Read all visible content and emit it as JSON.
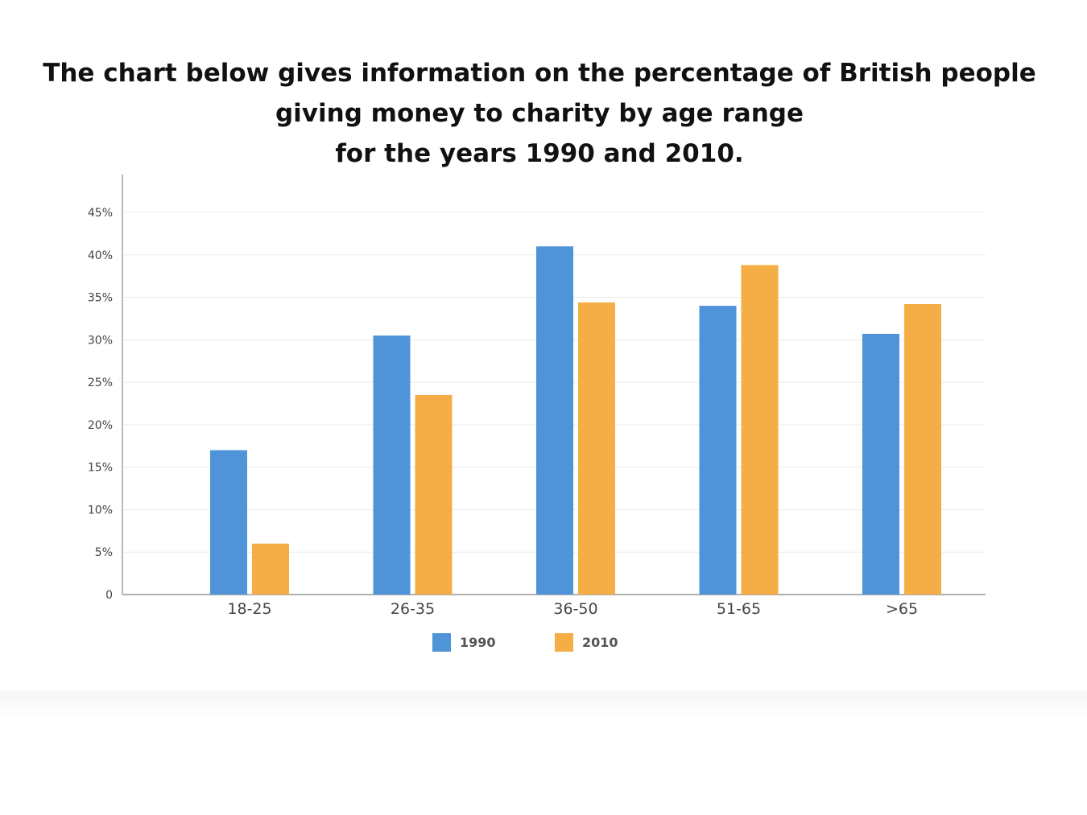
{
  "title_lines": [
    "The chart below gives information on the percentage of British people",
    "giving money to charity by age range",
    "for the years 1990 and 2010."
  ],
  "chart_data": {
    "type": "bar",
    "title": "The chart below gives information on the percentage of British people giving money to charity by age range for the years 1990 and 2010.",
    "xlabel": "",
    "ylabel": "",
    "categories": [
      "18-25",
      "26-35",
      "36-50",
      "51-65",
      ">65"
    ],
    "series": [
      {
        "name": "1990",
        "color": "#4f94d8",
        "values": [
          17,
          30.5,
          41,
          34,
          30.7
        ]
      },
      {
        "name": "2010",
        "color": "#f5ae46",
        "values": [
          6,
          23.5,
          34.4,
          38.8,
          34.2
        ]
      }
    ],
    "ylim": [
      0,
      45
    ],
    "yticks": [
      0,
      5,
      10,
      15,
      20,
      25,
      30,
      35,
      40,
      45
    ],
    "ytick_labels": [
      "0",
      "5%",
      "10%",
      "15%",
      "20%",
      "25%",
      "30%",
      "35%",
      "40%",
      "45%"
    ],
    "grid": true,
    "legend_position": "bottom-center"
  }
}
